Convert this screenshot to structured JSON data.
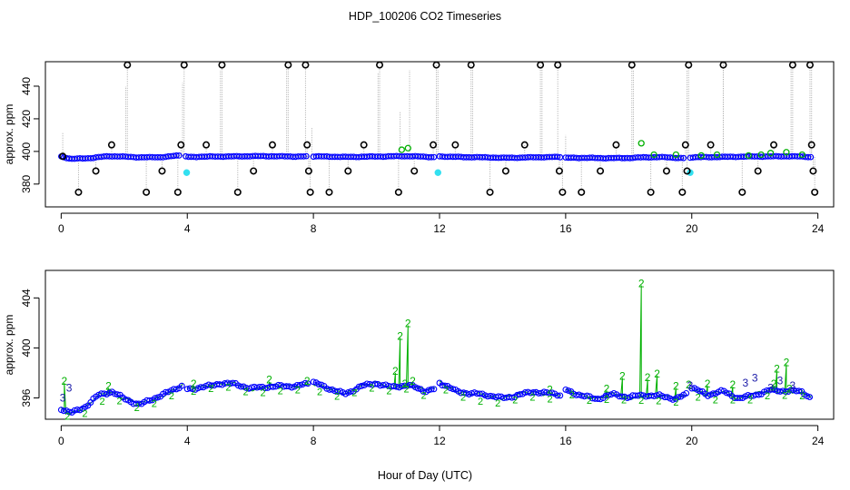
{
  "title": "HDP_100206  CO2 Timeseries",
  "xlabel": "Hour of Day (UTC)",
  "colors": {
    "axis": "#000000",
    "trace": "#aaaaaa",
    "series1": "#0000ff",
    "series2": "#00b000",
    "series3": "#1a1aa8",
    "flag": "#000000",
    "cyan": "#33e0f0"
  },
  "chart_data": [
    {
      "type": "scatter",
      "panel": "top",
      "ylabel": "approx. ppm",
      "xlim": [
        -0.5,
        24.5
      ],
      "ylim": [
        366,
        455
      ],
      "x_ticks": [
        0,
        4,
        8,
        12,
        16,
        20,
        24
      ],
      "x_tick_labels": [
        "0",
        "4",
        "8",
        "12",
        "16",
        "20",
        "24"
      ],
      "y_ticks": [
        380,
        400,
        420,
        440
      ],
      "y_tick_labels": [
        "380",
        "400",
        "420",
        "440"
      ],
      "segments": [
        [
          0.0,
          3.8
        ],
        [
          3.95,
          7.85
        ],
        [
          8.0,
          11.85
        ],
        [
          12.0,
          15.85
        ],
        [
          16.0,
          19.8
        ],
        [
          19.95,
          23.8
        ]
      ],
      "baseline": [
        [
          0.0,
          397
        ],
        [
          0.3,
          395.5
        ],
        [
          1.0,
          396
        ],
        [
          1.5,
          397
        ],
        [
          2.5,
          396.5
        ],
        [
          3.2,
          396.5
        ],
        [
          3.8,
          397.5
        ],
        [
          4.0,
          396.5
        ],
        [
          5.0,
          397
        ],
        [
          6.0,
          397
        ],
        [
          7.0,
          397
        ],
        [
          7.8,
          397
        ],
        [
          8.0,
          397
        ],
        [
          9.0,
          396.5
        ],
        [
          10.0,
          397
        ],
        [
          11.0,
          397
        ],
        [
          11.8,
          396.5
        ],
        [
          12.0,
          397
        ],
        [
          13.0,
          396.5
        ],
        [
          14.0,
          396
        ],
        [
          15.0,
          396.5
        ],
        [
          15.8,
          396.5
        ],
        [
          16.0,
          396
        ],
        [
          17.0,
          396
        ],
        [
          18.0,
          396
        ],
        [
          19.0,
          396.5
        ],
        [
          19.8,
          396
        ],
        [
          20.0,
          396.5
        ],
        [
          21.0,
          396.5
        ],
        [
          22.0,
          397
        ],
        [
          23.0,
          397
        ],
        [
          23.8,
          396.5
        ]
      ],
      "series_green": [
        [
          10.8,
          401
        ],
        [
          11.0,
          402
        ],
        [
          18.4,
          405
        ],
        [
          18.8,
          398
        ],
        [
          19.5,
          398
        ],
        [
          20.3,
          397.5
        ],
        [
          20.8,
          398
        ],
        [
          21.8,
          397.5
        ],
        [
          22.2,
          398
        ],
        [
          22.5,
          399
        ],
        [
          23.0,
          399.5
        ],
        [
          23.5,
          398
        ]
      ],
      "series_cyan": [
        [
          3.98,
          387
        ],
        [
          11.95,
          387
        ],
        [
          19.95,
          387
        ]
      ],
      "flag_points": [
        [
          0.05,
          397
        ],
        [
          0.55,
          375
        ],
        [
          1.1,
          388
        ],
        [
          1.6,
          404
        ],
        [
          2.1,
          453
        ],
        [
          2.7,
          375
        ],
        [
          3.2,
          388
        ],
        [
          3.7,
          375
        ],
        [
          3.8,
          404
        ],
        [
          3.9,
          453
        ],
        [
          4.6,
          404
        ],
        [
          5.1,
          453
        ],
        [
          5.6,
          375
        ],
        [
          6.1,
          388
        ],
        [
          6.7,
          404
        ],
        [
          7.2,
          453
        ],
        [
          7.75,
          453
        ],
        [
          7.8,
          404
        ],
        [
          7.85,
          388
        ],
        [
          7.9,
          375
        ],
        [
          8.5,
          375
        ],
        [
          9.1,
          388
        ],
        [
          9.6,
          404
        ],
        [
          10.1,
          453
        ],
        [
          10.7,
          375
        ],
        [
          11.2,
          388
        ],
        [
          11.8,
          404
        ],
        [
          11.9,
          453
        ],
        [
          12.5,
          404
        ],
        [
          13.0,
          453
        ],
        [
          13.6,
          375
        ],
        [
          14.1,
          388
        ],
        [
          14.7,
          404
        ],
        [
          15.2,
          453
        ],
        [
          15.75,
          453
        ],
        [
          15.8,
          388
        ],
        [
          15.9,
          375
        ],
        [
          16.5,
          375
        ],
        [
          17.1,
          388
        ],
        [
          17.6,
          404
        ],
        [
          18.1,
          453
        ],
        [
          18.7,
          375
        ],
        [
          19.2,
          388
        ],
        [
          19.7,
          375
        ],
        [
          19.8,
          404
        ],
        [
          19.85,
          388
        ],
        [
          19.9,
          453
        ],
        [
          20.6,
          404
        ],
        [
          21.0,
          453
        ],
        [
          21.6,
          375
        ],
        [
          22.1,
          388
        ],
        [
          22.6,
          404
        ],
        [
          23.2,
          453
        ],
        [
          23.75,
          453
        ],
        [
          23.8,
          404
        ],
        [
          23.85,
          388
        ],
        [
          23.9,
          375
        ]
      ],
      "spikes": [
        [
          0.05,
          412
        ],
        [
          2.05,
          440
        ],
        [
          3.85,
          442
        ],
        [
          4.0,
          398
        ],
        [
          5.05,
          450
        ],
        [
          7.15,
          452
        ],
        [
          7.95,
          415
        ],
        [
          10.05,
          448
        ],
        [
          10.75,
          424
        ],
        [
          11.05,
          450
        ],
        [
          11.95,
          450
        ],
        [
          13.05,
          452
        ],
        [
          15.25,
          452
        ],
        [
          16.0,
          410
        ],
        [
          18.15,
          450
        ],
        [
          19.85,
          450
        ],
        [
          21.0,
          455
        ],
        [
          23.15,
          452
        ],
        [
          23.8,
          452
        ]
      ]
    },
    {
      "type": "line",
      "panel": "bottom",
      "ylabel": "approx. ppm",
      "xlim": [
        -0.5,
        24.5
      ],
      "ylim": [
        394.3,
        406.2
      ],
      "x_ticks": [
        0,
        4,
        8,
        12,
        16,
        20,
        24
      ],
      "x_tick_labels": [
        "0",
        "4",
        "8",
        "12",
        "16",
        "20",
        "24"
      ],
      "y_ticks": [
        396,
        400,
        404
      ],
      "y_tick_labels": [
        "396",
        "400",
        "404"
      ],
      "segments": [
        [
          0.0,
          3.85
        ],
        [
          4.0,
          7.85
        ],
        [
          8.0,
          11.85
        ],
        [
          12.0,
          15.85
        ],
        [
          16.0,
          19.85
        ],
        [
          20.0,
          23.8
        ]
      ],
      "baseline": [
        [
          0.0,
          395.2
        ],
        [
          0.3,
          394.8
        ],
        [
          0.8,
          395.3
        ],
        [
          1.2,
          396.2
        ],
        [
          1.6,
          396.5
        ],
        [
          2.0,
          396.0
        ],
        [
          2.5,
          395.5
        ],
        [
          3.0,
          396.0
        ],
        [
          3.5,
          396.5
        ],
        [
          3.85,
          397.0
        ],
        [
          4.0,
          396.7
        ],
        [
          4.5,
          396.9
        ],
        [
          5.0,
          397.2
        ],
        [
          5.5,
          397.1
        ],
        [
          6.0,
          396.7
        ],
        [
          6.5,
          396.9
        ],
        [
          7.0,
          397.0
        ],
        [
          7.5,
          397.0
        ],
        [
          7.85,
          397.1
        ],
        [
          8.0,
          397.2
        ],
        [
          8.5,
          396.7
        ],
        [
          9.0,
          396.3
        ],
        [
          9.5,
          397.0
        ],
        [
          10.0,
          397.2
        ],
        [
          10.5,
          396.8
        ],
        [
          11.0,
          397.0
        ],
        [
          11.5,
          396.6
        ],
        [
          11.85,
          396.8
        ],
        [
          12.0,
          397.3
        ],
        [
          12.5,
          396.6
        ],
        [
          13.0,
          396.3
        ],
        [
          13.5,
          396.2
        ],
        [
          14.0,
          396.0
        ],
        [
          14.5,
          396.3
        ],
        [
          15.0,
          396.5
        ],
        [
          15.5,
          396.3
        ],
        [
          15.85,
          396.2
        ],
        [
          16.0,
          396.6
        ],
        [
          16.5,
          396.2
        ],
        [
          17.0,
          396.0
        ],
        [
          17.5,
          396.3
        ],
        [
          18.0,
          396.0
        ],
        [
          18.5,
          396.2
        ],
        [
          19.0,
          396.2
        ],
        [
          19.5,
          396.0
        ],
        [
          19.85,
          396.3
        ],
        [
          20.0,
          396.8
        ],
        [
          20.5,
          396.2
        ],
        [
          21.0,
          396.5
        ],
        [
          21.5,
          396.0
        ],
        [
          22.0,
          396.3
        ],
        [
          22.5,
          396.6
        ],
        [
          23.0,
          396.5
        ],
        [
          23.5,
          396.5
        ],
        [
          23.8,
          396.0
        ]
      ],
      "series_green": [
        [
          0.1,
          397.2
        ],
        [
          1.5,
          396.8
        ],
        [
          4.2,
          397.0
        ],
        [
          6.6,
          397.3
        ],
        [
          7.8,
          397.2
        ],
        [
          10.6,
          398.0
        ],
        [
          10.75,
          400.8
        ],
        [
          10.9,
          397.0
        ],
        [
          11.0,
          401.8
        ],
        [
          11.15,
          397.2
        ],
        [
          15.5,
          396.5
        ],
        [
          17.3,
          396.6
        ],
        [
          17.8,
          397.6
        ],
        [
          18.4,
          405.0
        ],
        [
          18.6,
          397.5
        ],
        [
          18.9,
          397.8
        ],
        [
          19.5,
          396.8
        ],
        [
          19.9,
          396.9
        ],
        [
          20.5,
          397.0
        ],
        [
          21.3,
          396.9
        ],
        [
          22.6,
          397.0
        ],
        [
          22.7,
          398.2
        ],
        [
          23.0,
          398.7
        ],
        [
          23.1,
          396.6
        ]
      ],
      "series_three": [
        [
          0.05,
          396.0
        ],
        [
          0.25,
          396.8
        ],
        [
          19.95,
          397.0
        ],
        [
          21.7,
          397.2
        ],
        [
          22.0,
          397.6
        ],
        [
          22.5,
          396.8
        ],
        [
          22.8,
          397.4
        ],
        [
          23.2,
          397.0
        ]
      ]
    }
  ]
}
